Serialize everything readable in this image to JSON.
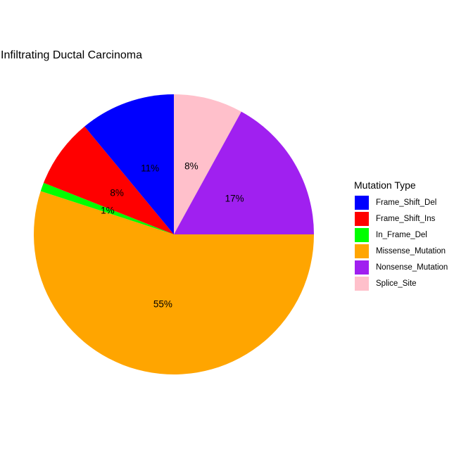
{
  "chart_data": {
    "type": "pie",
    "title": "Infiltrating Ductal Carcinoma",
    "legend_title": "Mutation Type",
    "legend_position": "right",
    "start_at": "12 o'clock",
    "direction": "clockwise",
    "slices": [
      {
        "name": "Splice_Site",
        "value": 8,
        "label": "8%",
        "color": "#FFC0CB"
      },
      {
        "name": "Nonsense_Mutation",
        "value": 17,
        "label": "17%",
        "color": "#A020F0"
      },
      {
        "name": "Missense_Mutation",
        "value": 55,
        "label": "55%",
        "color": "#FFA500"
      },
      {
        "name": "In_Frame_Del",
        "value": 1,
        "label": "1%",
        "color": "#00FF00"
      },
      {
        "name": "Frame_Shift_Ins",
        "value": 8,
        "label": "8%",
        "color": "#FF0000"
      },
      {
        "name": "Frame_Shift_Del",
        "value": 11,
        "label": "11%",
        "color": "#0000FF"
      }
    ],
    "legend_order": [
      "Frame_Shift_Del",
      "Frame_Shift_Ins",
      "In_Frame_Del",
      "Missense_Mutation",
      "Nonsense_Mutation",
      "Splice_Site"
    ]
  }
}
